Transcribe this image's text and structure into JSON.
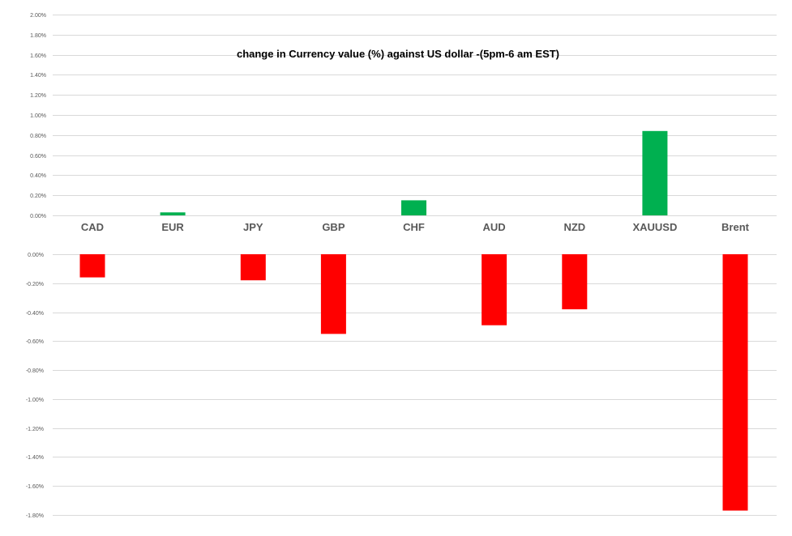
{
  "chart_data": {
    "type": "bar",
    "title": "change in Currency value (%)  against US dollar -(5pm-6 am EST)",
    "categories": [
      "CAD",
      "EUR",
      "JPY",
      "GBP",
      "CHF",
      "AUD",
      "NZD",
      "XAUUSD",
      "Brent"
    ],
    "values": [
      -0.16,
      0.03,
      -0.18,
      -0.55,
      0.15,
      -0.49,
      -0.38,
      0.84,
      -1.77
    ],
    "positive_color": "#00b050",
    "negative_color": "#ff0000",
    "grid": true,
    "upper_panel": {
      "ylim": [
        0,
        2.0
      ],
      "ticks": [
        "2.00%",
        "1.80%",
        "1.60%",
        "1.40%",
        "1.20%",
        "1.00%",
        "0.80%",
        "0.60%",
        "0.40%",
        "0.20%",
        "0.00%"
      ]
    },
    "lower_panel": {
      "ylim": [
        -1.8,
        0
      ],
      "ticks": [
        "0.00%",
        "-0.20%",
        "-0.40%",
        "-0.60%",
        "-0.80%",
        "-1.00%",
        "-1.20%",
        "-1.40%",
        "-1.60%",
        "-1.80%"
      ]
    }
  }
}
